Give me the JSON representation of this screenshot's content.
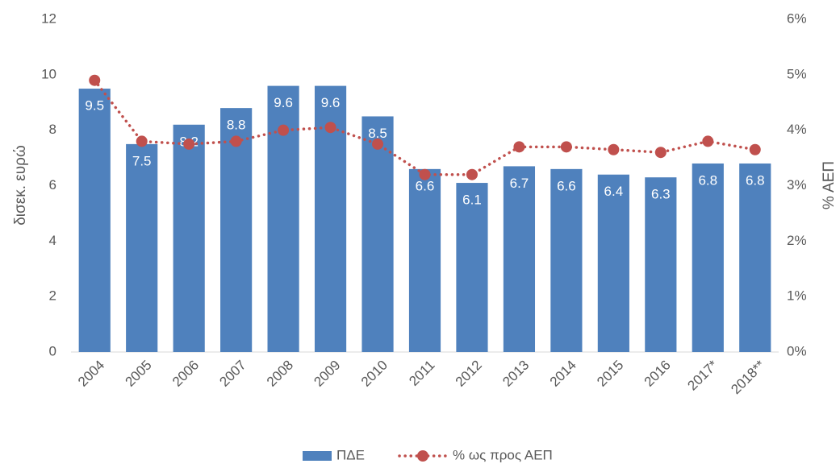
{
  "chart_data": {
    "type": "bar",
    "categories": [
      "2004",
      "2005",
      "2006",
      "2007",
      "2008",
      "2009",
      "2010",
      "2011",
      "2012",
      "2013",
      "2014",
      "2015",
      "2016",
      "2017*",
      "2018**"
    ],
    "series": [
      {
        "name": "ΠΔΕ",
        "type": "bar",
        "color": "#4f81bd",
        "values": [
          9.5,
          7.5,
          8.2,
          8.8,
          9.6,
          9.6,
          8.5,
          6.6,
          6.1,
          6.7,
          6.6,
          6.4,
          6.3,
          6.8,
          6.8
        ]
      },
      {
        "name": "% ως προς ΑΕΠ",
        "type": "line",
        "axis": "y2",
        "color": "#c0504d",
        "values": [
          4.9,
          3.8,
          3.75,
          3.8,
          4.0,
          4.05,
          3.75,
          3.2,
          3.2,
          3.7,
          3.7,
          3.65,
          3.6,
          3.8,
          3.65
        ]
      }
    ],
    "ylabel": "δισεκ. ευρώ",
    "y2label": "% ΑΕΠ",
    "ylim": [
      0,
      12
    ],
    "yticks": [
      0,
      2,
      4,
      6,
      8,
      10,
      12
    ],
    "y2lim": [
      0,
      6
    ],
    "y2ticks": [
      {
        "value": 0,
        "label": "0%"
      },
      {
        "value": 1,
        "label": "1%"
      },
      {
        "value": 2,
        "label": "2%"
      },
      {
        "value": 3,
        "label": "3%"
      },
      {
        "value": 4,
        "label": "4%"
      },
      {
        "value": 5,
        "label": "5%"
      },
      {
        "value": 6,
        "label": "6%"
      }
    ],
    "legend": "bottom"
  }
}
